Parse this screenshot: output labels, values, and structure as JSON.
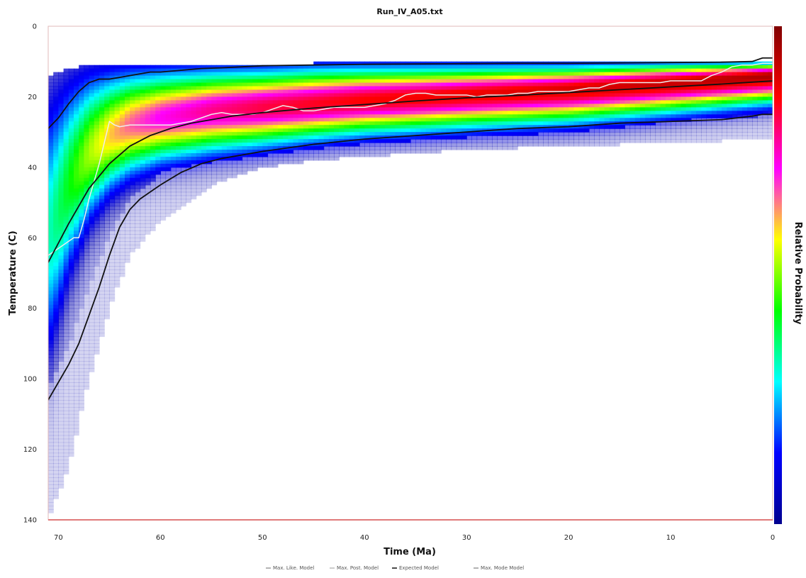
{
  "chart_data": {
    "type": "heatmap",
    "title": "Run_IV_A05.txt",
    "xlabel": "Time (Ma)",
    "ylabel": "Temperature (C)",
    "colorbar_label": "Relative Probability",
    "xlim": [
      71,
      0
    ],
    "ylim": [
      0,
      140
    ],
    "x_ticks": [
      70,
      60,
      50,
      40,
      30,
      20,
      10,
      0
    ],
    "y_ticks": [
      0,
      20,
      40,
      60,
      80,
      100,
      120,
      140
    ],
    "y_inverted": true,
    "colormap": [
      "#00008f",
      "#0000ff",
      "#00ffff",
      "#00ff00",
      "#ffff00",
      "#ff00ff",
      "#ff0000",
      "#800000"
    ],
    "density_envelope": {
      "time": [
        71,
        69,
        67,
        65,
        63,
        60,
        55,
        50,
        45,
        40,
        30,
        20,
        10,
        0
      ],
      "top_temp": [
        14,
        12,
        11,
        11,
        11,
        11,
        11,
        11,
        10.5,
        10.5,
        10.5,
        10.5,
        10,
        10
      ],
      "bottom_temp": [
        140,
        125,
        100,
        80,
        65,
        55,
        45,
        40,
        38,
        37,
        35,
        34,
        33,
        32
      ],
      "peak_temp": [
        60,
        45,
        36,
        31,
        28,
        26,
        24,
        23,
        22,
        21,
        19.5,
        18,
        16,
        14
      ],
      "peak_width": [
        22,
        16,
        12,
        10,
        9,
        8,
        7.5,
        7,
        6.5,
        6.2,
        6,
        6,
        5.5,
        5
      ],
      "peak_strength": [
        0.32,
        0.42,
        0.52,
        0.6,
        0.66,
        0.72,
        0.78,
        0.82,
        0.84,
        0.86,
        0.88,
        0.9,
        0.92,
        0.95
      ]
    },
    "series": [
      {
        "name": "Max. Like. Model",
        "color": "#eeeeee",
        "x": [
          71,
          70.5,
          70,
          69.5,
          69,
          68.5,
          68,
          67.5,
          67,
          66.5,
          66,
          65.5,
          65,
          64.5,
          64,
          63,
          62,
          61,
          60,
          59,
          58,
          57,
          56,
          55,
          54,
          53,
          52,
          51,
          50,
          49,
          48,
          47,
          46,
          45,
          44,
          43,
          42,
          41,
          40,
          39,
          38,
          37,
          36,
          35,
          34,
          33,
          32,
          31,
          30,
          29,
          28,
          27,
          26,
          25,
          24,
          23,
          22,
          21,
          20,
          19,
          18,
          17,
          16,
          15,
          14,
          13,
          12,
          11,
          10,
          9,
          8,
          7,
          6,
          5,
          4,
          3,
          2,
          1,
          0
        ],
        "y": [
          65,
          64,
          63,
          62,
          61,
          60,
          60,
          55,
          49,
          44,
          39,
          33,
          27,
          28,
          28.5,
          28,
          28,
          28,
          28,
          28,
          27.5,
          27,
          26,
          25,
          24.5,
          25,
          25,
          25,
          24.5,
          23.5,
          22.5,
          23,
          24,
          24,
          23.5,
          23,
          23,
          23,
          23,
          22.5,
          22,
          21,
          19.5,
          19,
          19,
          19.5,
          19.5,
          19.5,
          19.5,
          20,
          19.5,
          19.5,
          19.5,
          19,
          19,
          18.5,
          18.5,
          18.5,
          18.5,
          18,
          17.5,
          17.5,
          16.5,
          16,
          16,
          16,
          16,
          16,
          15.5,
          15.5,
          15.5,
          15.5,
          14,
          13,
          11.5,
          11,
          11,
          10.5,
          10.5
        ]
      },
      {
        "name": "Max. Post. Model",
        "color": "#bbbbbb",
        "x": [],
        "y": []
      },
      {
        "name": "Expected Model",
        "color": "#111111",
        "x": [
          71,
          69,
          67,
          65,
          63,
          61,
          59,
          57,
          55,
          53,
          50,
          45,
          40,
          35,
          30,
          25,
          20,
          15,
          10,
          5,
          0
        ],
        "y": [
          67,
          56,
          46,
          39,
          34,
          31,
          29,
          27.5,
          26.5,
          25.5,
          24.5,
          23.2,
          22.2,
          21.2,
          20.3,
          19.6,
          18.8,
          18,
          17.2,
          16.4,
          15.5
        ]
      },
      {
        "name": "Max. Mode Model",
        "color": "#999999",
        "x": [],
        "y": []
      }
    ],
    "confidence_bounds": {
      "color": "#111111",
      "upper": {
        "x": [
          71,
          70,
          69,
          68,
          67,
          66,
          65,
          64,
          63,
          62,
          61,
          60,
          58,
          56,
          54,
          52,
          50,
          45,
          40,
          35,
          30,
          25,
          20,
          15,
          10,
          5,
          2,
          1,
          0
        ],
        "y": [
          29,
          26,
          22,
          18.5,
          16,
          15,
          15,
          14.5,
          14,
          13.5,
          13,
          13,
          12.5,
          12,
          11.8,
          11.5,
          11.2,
          11,
          10.8,
          10.7,
          10.6,
          10.5,
          10.5,
          10.4,
          10.3,
          10.2,
          10,
          9,
          9
        ]
      },
      "lower": {
        "x": [
          71,
          70,
          69,
          68,
          67,
          66,
          65,
          64,
          63,
          62,
          61,
          60,
          58,
          56,
          54,
          52,
          50,
          45,
          40,
          35,
          30,
          25,
          20,
          15,
          10,
          5,
          2,
          1,
          0
        ],
        "y": [
          106,
          101,
          96,
          90,
          82,
          74,
          65,
          57,
          52,
          49,
          47,
          45,
          41.5,
          39,
          37.5,
          36.5,
          35.5,
          33.5,
          32,
          31,
          30,
          29,
          28.5,
          27.5,
          27,
          26.5,
          25.5,
          25,
          25
        ]
      }
    },
    "legend": {
      "placement": "bottom",
      "entries": [
        "Max. Like. Model",
        "Max. Post. Model",
        "Expected Model",
        "Max. Mode Model"
      ]
    },
    "grid": false
  }
}
